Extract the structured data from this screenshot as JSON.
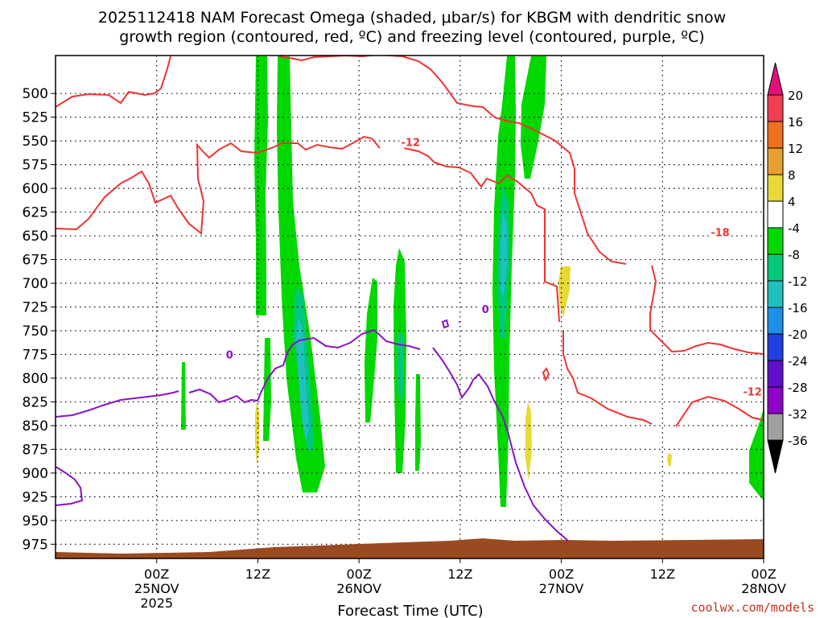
{
  "chart_data": {
    "type": "heatmap",
    "title_line1": "2025112418 NAM Forecast Omega (shaded, μbar/s) for KBGM with dendritic snow",
    "title_line2": "growth region (contoured, red, ºC) and freezing level (contoured, purple, ºC)",
    "xlabel": "Forecast Time (UTC)",
    "credit": "coolwx.com/models",
    "hours_range": [
      -10,
      60
    ],
    "ylim": [
      460,
      990
    ],
    "y_ticks": [
      500,
      525,
      550,
      575,
      600,
      625,
      650,
      675,
      700,
      725,
      750,
      775,
      800,
      825,
      850,
      875,
      900,
      925,
      950,
      975
    ],
    "x_ticks": [
      {
        "hour": 0,
        "label": "00Z",
        "sub1": "25NOV",
        "sub2": "2025"
      },
      {
        "hour": 10,
        "label": "12Z",
        "sub1": "",
        "sub2": ""
      },
      {
        "hour": 20,
        "label": "00Z",
        "sub1": "26NOV",
        "sub2": ""
      },
      {
        "hour": 30,
        "label": "12Z",
        "sub1": "",
        "sub2": ""
      },
      {
        "hour": 40,
        "label": "00Z",
        "sub1": "27NOV",
        "sub2": ""
      },
      {
        "hour": 50,
        "label": "12Z",
        "sub1": "",
        "sub2": ""
      },
      {
        "hour": 60,
        "label": "00Z",
        "sub1": "28NOV",
        "sub2": ""
      }
    ],
    "colorbar": {
      "labels": [
        "20",
        "16",
        "12",
        "8",
        "4",
        "-4",
        "-8",
        "-12",
        "-16",
        "-20",
        "-24",
        "-28",
        "-32",
        "-36"
      ],
      "colors": [
        "#f04050",
        "#f07020",
        "#e8a030",
        "#e8d838",
        "#ffffff",
        "#00d800",
        "#00c87a",
        "#20c0c0",
        "#1e90e8",
        "#2040e0",
        "#6010c8",
        "#9000c8",
        "#a0a0a0"
      ],
      "top_arrow": "#e0107a",
      "bottom_arrow": "#000000"
    },
    "contour_labels": [
      {
        "text": "-12",
        "hour": 25.1,
        "p": 552,
        "color": "#ee3333"
      },
      {
        "text": "-18",
        "hour": 55.7,
        "p": 647,
        "color": "#ee3333"
      },
      {
        "text": "-12",
        "hour": 58.9,
        "p": 815,
        "color": "#ee3333"
      },
      {
        "text": "0",
        "hour": 7.2,
        "p": 776,
        "color": "#8a12c6"
      },
      {
        "text": "0",
        "hour": 32.5,
        "p": 728,
        "color": "#8a12c6"
      }
    ],
    "shading_note": "Omega shading: green (-8 to -4), teal (-12 to -8), cyan (-16 to -12), yellow (4 to 8) regions"
  }
}
